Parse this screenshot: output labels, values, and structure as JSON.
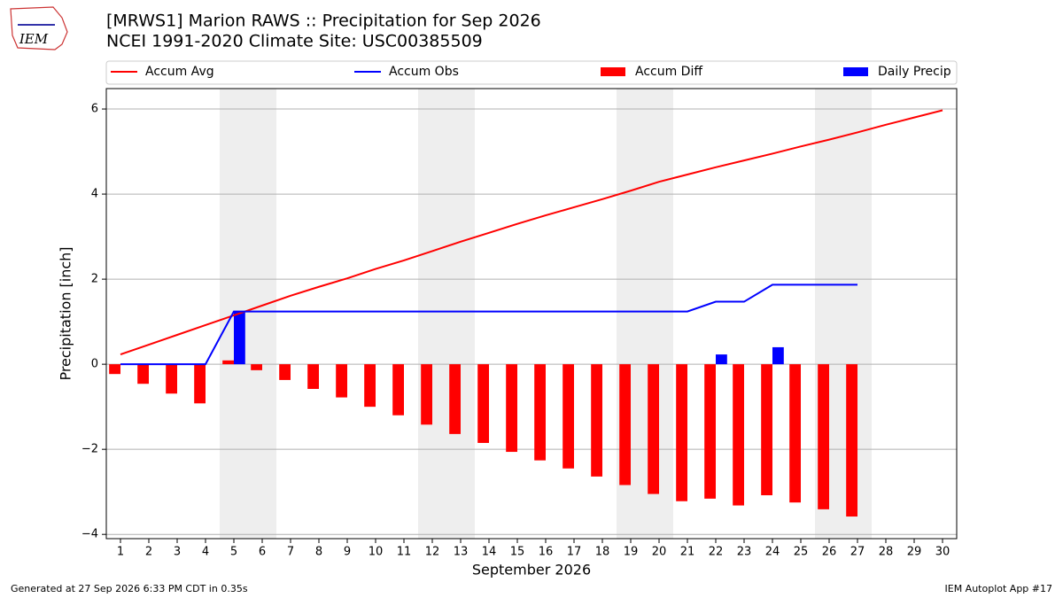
{
  "logo": "IEM",
  "footer_left": "Generated at 27 Sep 2026 6:33 PM CDT in 0.35s",
  "footer_right": "IEM Autoplot App #17",
  "chart_data": {
    "type": "combo",
    "title": "[MRWS1] Marion RAWS :: Precipitation for Sep 2026",
    "subtitle": "NCEI 1991-2020 Climate Site: USC00385509",
    "xlabel": "September 2026",
    "ylabel": "Precipitation [inch]",
    "x": [
      1,
      2,
      3,
      4,
      5,
      6,
      7,
      8,
      9,
      10,
      11,
      12,
      13,
      14,
      15,
      16,
      17,
      18,
      19,
      20,
      21,
      22,
      23,
      24,
      25,
      26,
      27,
      28,
      29,
      30
    ],
    "xlim": [
      0.5,
      30.5
    ],
    "xticks": [
      1,
      2,
      3,
      4,
      5,
      6,
      7,
      8,
      9,
      10,
      11,
      12,
      13,
      14,
      15,
      16,
      17,
      18,
      19,
      20,
      21,
      22,
      23,
      24,
      25,
      26,
      27,
      28,
      29,
      30
    ],
    "ylim": [
      -4.1,
      6.48
    ],
    "yticks": [
      {
        "value": -4,
        "label": "−4"
      },
      {
        "value": -2,
        "label": "−2"
      },
      0,
      2,
      4,
      6
    ],
    "grid": true,
    "legend": "top",
    "series": [
      {
        "name": "Accum Avg",
        "type": "line",
        "color": "#ff0000",
        "values": [
          0.23,
          0.46,
          0.69,
          0.92,
          1.15,
          1.38,
          1.61,
          1.82,
          2.02,
          2.24,
          2.44,
          2.66,
          2.88,
          3.09,
          3.3,
          3.5,
          3.69,
          3.88,
          4.08,
          4.29,
          4.46,
          4.63,
          4.79,
          4.95,
          5.12,
          5.28,
          5.45,
          5.63,
          5.8,
          5.97
        ]
      },
      {
        "name": "Accum Obs",
        "type": "line",
        "color": "#0000ff",
        "values": [
          0,
          0,
          0,
          0,
          1.24,
          1.24,
          1.24,
          1.24,
          1.24,
          1.24,
          1.24,
          1.24,
          1.24,
          1.24,
          1.24,
          1.24,
          1.24,
          1.24,
          1.24,
          1.24,
          1.24,
          1.47,
          1.47,
          1.87,
          1.87,
          1.87,
          1.87,
          null,
          null,
          null
        ]
      },
      {
        "name": "Accum Diff",
        "type": "bar",
        "color": "#ff0000",
        "values": [
          -0.23,
          -0.46,
          -0.69,
          -0.92,
          0.09,
          -0.14,
          -0.37,
          -0.58,
          -0.78,
          -1.0,
          -1.2,
          -1.42,
          -1.64,
          -1.85,
          -2.06,
          -2.26,
          -2.45,
          -2.64,
          -2.84,
          -3.05,
          -3.22,
          -3.16,
          -3.32,
          -3.08,
          -3.25,
          -3.41,
          -3.58,
          null,
          null,
          null
        ]
      },
      {
        "name": "Daily Precip",
        "type": "bar",
        "color": "#0000ff",
        "values": [
          0,
          0,
          0,
          0,
          1.24,
          0,
          0,
          0,
          0,
          0,
          0,
          0,
          0,
          0,
          0,
          0,
          0,
          0,
          0,
          0,
          0,
          0.23,
          0,
          0.4,
          0,
          0,
          0,
          null,
          null,
          null
        ]
      }
    ]
  }
}
